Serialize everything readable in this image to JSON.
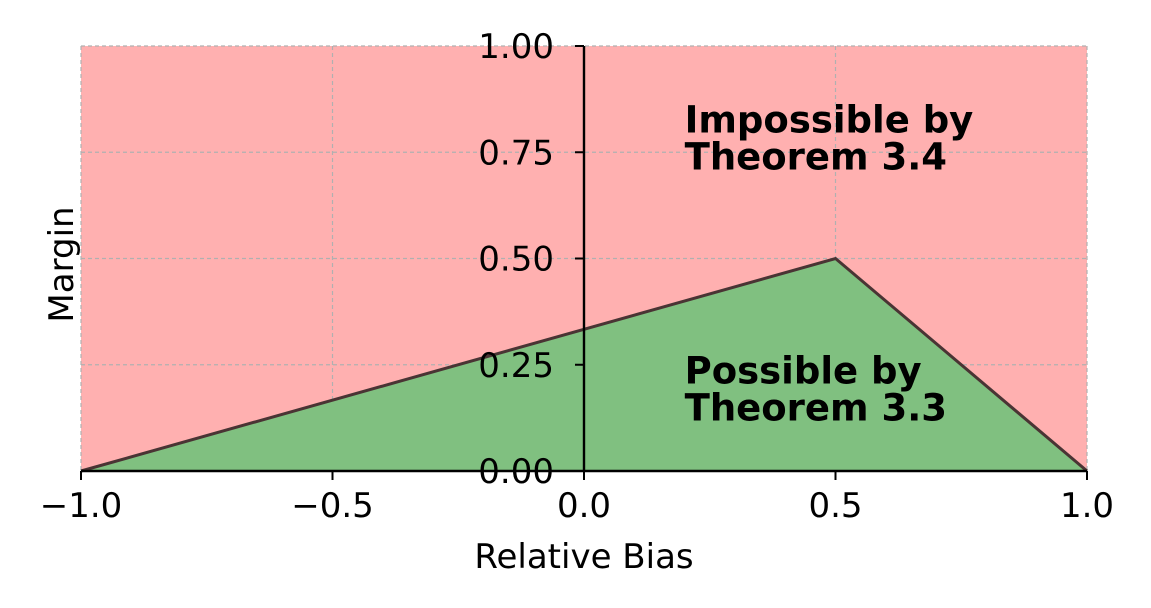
{
  "chart_data": {
    "type": "area",
    "xlabel": "Relative Bias",
    "ylabel": "Margin",
    "xlim": [
      -1.0,
      1.0
    ],
    "ylim": [
      0.0,
      1.0
    ],
    "xticks": [
      "−1.0",
      "−0.5",
      "0.0",
      "0.5",
      "1.0"
    ],
    "xtick_values": [
      -1.0,
      -0.5,
      0.0,
      0.5,
      1.0
    ],
    "yticks": [
      "0.00",
      "0.25",
      "0.50",
      "0.75",
      "1.00"
    ],
    "ytick_values": [
      0.0,
      0.25,
      0.5,
      0.75,
      1.0
    ],
    "grid": true,
    "boundary": {
      "x": [
        -1.0,
        0.5,
        1.0
      ],
      "y": [
        0.0,
        0.5,
        0.0
      ]
    },
    "regions": [
      {
        "label": "Impossible by Theorem 3.4",
        "lines": [
          "Impossible by",
          "Theorem 3.4"
        ],
        "color": "#ffb0b0",
        "text_anchor": [
          0.2,
          0.82
        ]
      },
      {
        "label": "Possible by Theorem 3.3",
        "lines": [
          "Possible by",
          "Theorem 3.3"
        ],
        "color": "#80c080",
        "text_anchor": [
          0.2,
          0.23
        ]
      }
    ],
    "boundary_color": "#4a3434"
  }
}
